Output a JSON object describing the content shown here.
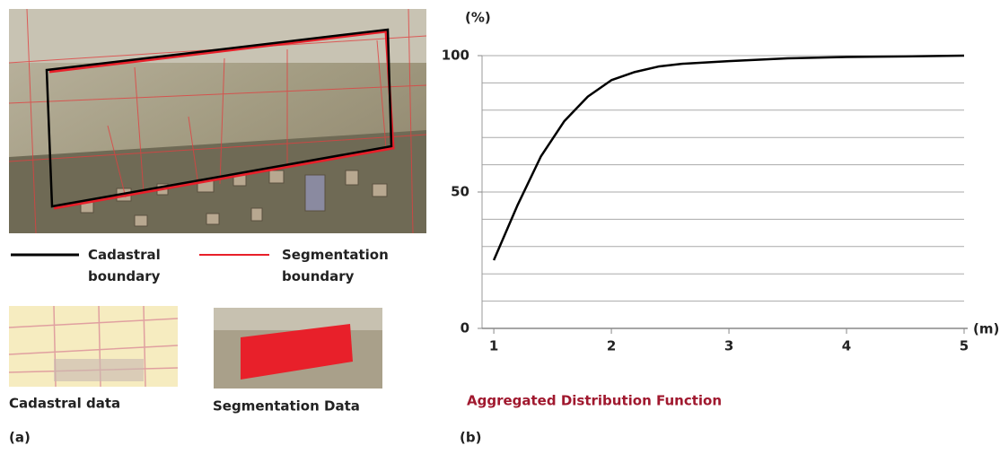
{
  "left_panel": {
    "legend": [
      "Cadastral boundary",
      "Segmentation boundary"
    ],
    "captions": [
      "Cadastral data",
      "Segmentation Data"
    ],
    "panel_label": "(a)"
  },
  "chart_data": {
    "type": "line",
    "title": "Aggregated Distribution Function",
    "panel_label": "(b)",
    "y_label": "(%)",
    "x_label": "(m)",
    "x": [
      1,
      1.2,
      1.4,
      1.6,
      1.8,
      2,
      2.2,
      2.4,
      2.6,
      3,
      3.5,
      4,
      4.5,
      5
    ],
    "series": [
      {
        "name": "Aggregated Distribution Function",
        "color": "#000000",
        "values": [
          25,
          45,
          63,
          76,
          85,
          91,
          94,
          96,
          97,
          98,
          99,
          99.5,
          99.7,
          100
        ]
      }
    ],
    "xlim": [
      0.9,
      5
    ],
    "ylim": [
      0,
      100
    ],
    "xticks": [
      1,
      2,
      3,
      4,
      5
    ],
    "yticks": [
      0,
      50,
      100
    ],
    "ygrid": [
      10,
      20,
      30,
      40,
      50,
      60,
      70,
      80,
      90,
      100
    ],
    "grid": true
  }
}
